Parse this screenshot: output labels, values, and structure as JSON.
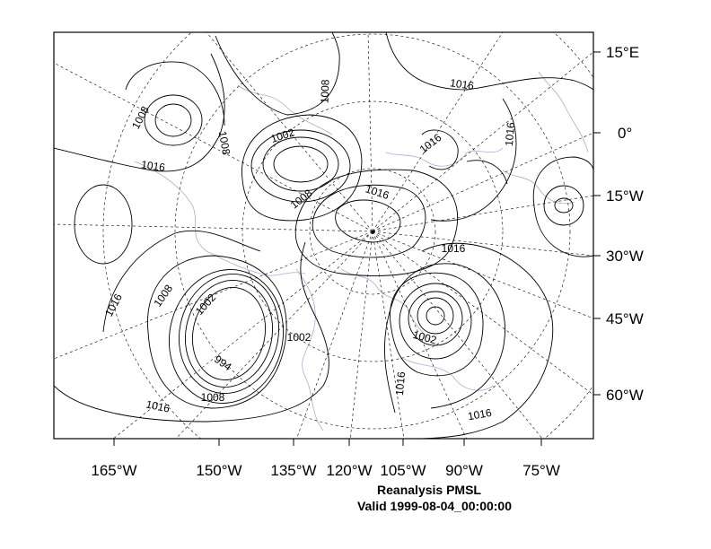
{
  "map": {
    "caption_title": "Reanalysis PMSL",
    "caption_valid": "Valid 1999-08-04_00:00:00",
    "bottom_labels": [
      "165°W",
      "150°W",
      "135°W",
      "120°W",
      "105°W",
      "90°W",
      "75°W"
    ],
    "right_labels": [
      "15°E",
      "0°",
      "15°W",
      "30°W",
      "45°W",
      "60°W"
    ],
    "contour_labels": [
      "1008",
      "1008",
      "1008",
      "1002",
      "1016",
      "1016",
      "1016",
      "1016",
      "1016",
      "1008",
      "1016",
      "1002",
      "1016",
      "1008",
      "1002",
      "994",
      "1008",
      "1016",
      "1002",
      "1016",
      "1016"
    ],
    "colors": {
      "contour": "#000000",
      "coastline": "#b9a6d6",
      "grid": "#000000",
      "frame": "#000000"
    }
  }
}
